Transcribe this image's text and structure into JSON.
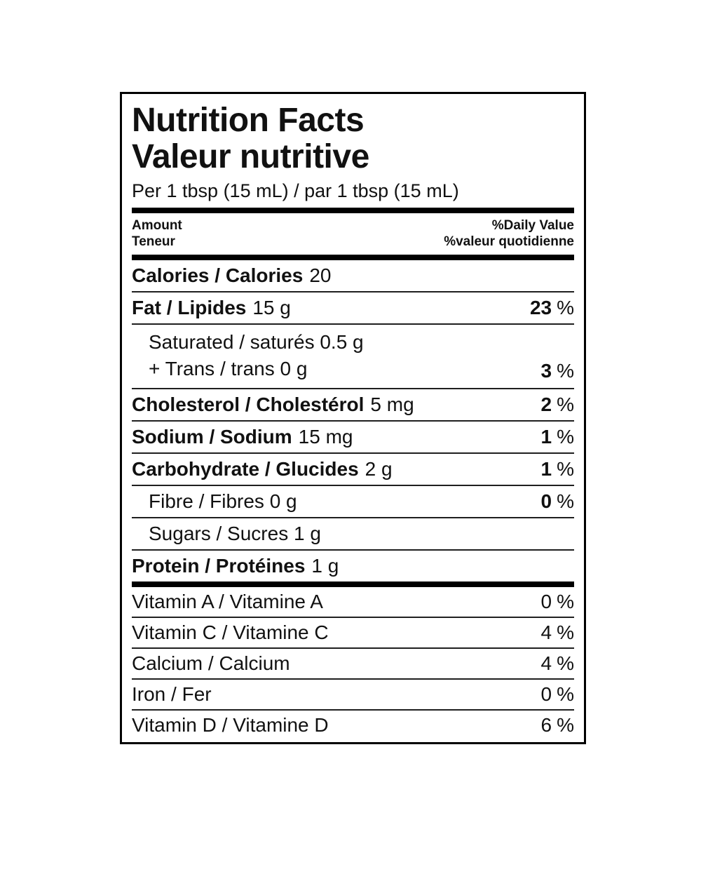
{
  "percent_sign": "%",
  "colors": {
    "background": "#ffffff",
    "text": "#111111",
    "border": "#000000",
    "thin_rule": "#1f1f1f"
  },
  "label": {
    "title_en": "Nutrition Facts",
    "title_fr": "Valeur nutritive",
    "serving": "Per 1 tbsp (15 mL) / par 1 tbsp (15 mL)",
    "header": {
      "amount_en": "Amount",
      "amount_fr": "Teneur",
      "daily_value_en": "%Daily Value",
      "daily_value_fr": "%valeur quotidienne"
    },
    "rows": {
      "calories": {
        "name": "Calories / Calories",
        "amount": "20"
      },
      "fat": {
        "name": "Fat / Lipides",
        "amount": "15 g",
        "dv": "23"
      },
      "sat_trans": {
        "line1": "Saturated / saturés 0.5 g",
        "line2": "+ Trans / trans 0 g",
        "dv": "3"
      },
      "cholesterol": {
        "name": "Cholesterol / Cholestérol",
        "amount": "5 mg",
        "dv": "2"
      },
      "sodium": {
        "name": "Sodium / Sodium",
        "amount": "15 mg",
        "dv": "1"
      },
      "carbohydrate": {
        "name": "Carbohydrate / Glucides",
        "amount": "2 g",
        "dv": "1"
      },
      "fibre": {
        "name": "Fibre / Fibres 0 g",
        "dv": "0"
      },
      "sugars": {
        "name": "Sugars / Sucres 1 g"
      },
      "protein": {
        "name": "Protein / Protéines",
        "amount": "1 g"
      },
      "vitamin_a": {
        "name": "Vitamin A / Vitamine A",
        "dv": "0"
      },
      "vitamin_c": {
        "name": "Vitamin C / Vitamine C",
        "dv": "4"
      },
      "calcium": {
        "name": "Calcium / Calcium",
        "dv": "4"
      },
      "iron": {
        "name": "Iron / Fer",
        "dv": "0"
      },
      "vitamin_d": {
        "name": "Vitamin D / Vitamine D",
        "dv": "6"
      }
    }
  }
}
